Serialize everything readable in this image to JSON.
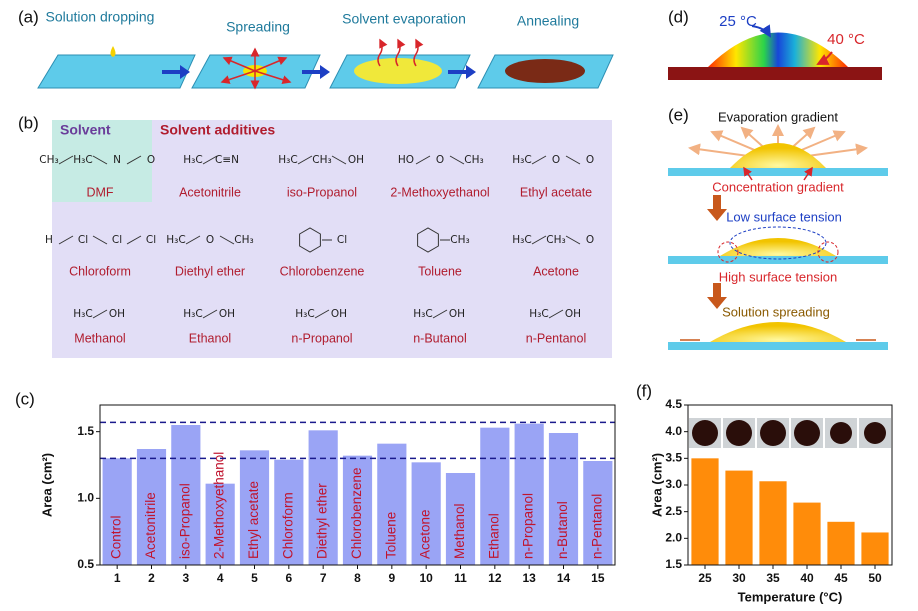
{
  "panels": {
    "a": {
      "label": "(a)",
      "steps": [
        "Solution dropping",
        "Spreading",
        "Solvent evaporation",
        "Annealing"
      ]
    },
    "b": {
      "label": "(b)",
      "solvent_heading": "Solvent",
      "additives_heading": "Solvent additives",
      "molecules": [
        {
          "name": "DMF",
          "fragments": [
            "CH₃",
            "H₃C",
            "N",
            "O"
          ]
        },
        {
          "name": "Acetonitrile",
          "fragments": [
            "H₃C",
            "C≡N"
          ]
        },
        {
          "name": "iso-Propanol",
          "fragments": [
            "H₃C",
            "CH₃",
            "OH"
          ]
        },
        {
          "name": "2-Methoxyethanol",
          "fragments": [
            "HO",
            "O",
            "CH₃"
          ]
        },
        {
          "name": "Ethyl acetate",
          "fragments": [
            "H₃C",
            "O",
            "O"
          ]
        },
        {
          "name": "Chloroform",
          "fragments": [
            "H",
            "Cl",
            "Cl",
            "Cl"
          ]
        },
        {
          "name": "Diethyl ether",
          "fragments": [
            "H₃C",
            "O",
            "CH₃"
          ]
        },
        {
          "name": "Chlorobenzene",
          "fragments": [
            "Cl"
          ],
          "ring": true
        },
        {
          "name": "Toluene",
          "fragments": [
            "CH₃"
          ],
          "ring": true
        },
        {
          "name": "Acetone",
          "fragments": [
            "H₃C",
            "CH₃",
            "O"
          ]
        },
        {
          "name": "Methanol",
          "fragments": [
            "H₃C",
            "OH"
          ]
        },
        {
          "name": "Ethanol",
          "fragments": [
            "H₃C",
            "OH"
          ]
        },
        {
          "name": "n-Propanol",
          "fragments": [
            "H₃C",
            "OH"
          ]
        },
        {
          "name": "n-Butanol",
          "fragments": [
            "H₃C",
            "OH"
          ]
        },
        {
          "name": "n-Pentanol",
          "fragments": [
            "H₃C",
            "OH"
          ]
        }
      ]
    },
    "d": {
      "label": "(d)",
      "temp_low": "25 °C",
      "temp_high": "40 °C"
    },
    "e": {
      "label": "(e)",
      "evaporation": "Evaporation gradient",
      "concentration": "Concentration gradient",
      "low_tension": "Low surface tension",
      "high_tension": "High surface tension",
      "spreading": "Solution spreading"
    }
  },
  "chart_data": [
    {
      "type": "bar",
      "label": "(c)",
      "ylabel": "Area (cm²)",
      "color": "#9aa4f5",
      "categories": [
        "1",
        "2",
        "3",
        "4",
        "5",
        "6",
        "7",
        "8",
        "9",
        "10",
        "11",
        "12",
        "13",
        "14",
        "15"
      ],
      "values": [
        1.3,
        1.37,
        1.55,
        1.11,
        1.36,
        1.29,
        1.51,
        1.32,
        1.41,
        1.27,
        1.19,
        1.53,
        1.56,
        1.49,
        1.28
      ],
      "bar_labels": [
        "Control",
        "Acetonitrile",
        "iso-Propanol",
        "2-Methoxyethanol",
        "Ethyl acetate",
        "Chloroform",
        "Diethyl ether",
        "Chlorobenzene",
        "Toluene",
        "Acetone",
        "Methanol",
        "Ethanol",
        "n-Propanol",
        "n-Butanol",
        "n-Pentanol"
      ],
      "reference_lines": [
        1.57,
        1.3
      ],
      "ylim": [
        0.5,
        1.7
      ],
      "yticks": [
        0.5,
        {
          "value": 1,
          "label": "1.0"
        },
        1.5
      ]
    },
    {
      "type": "bar",
      "label": "(f)",
      "ylabel": "Area (cm²)",
      "xlabel": "Temperature (°C)",
      "color": "#ff8c0a",
      "categories": [
        "25",
        "30",
        "35",
        "40",
        "45",
        "50"
      ],
      "values": [
        3.5,
        3.27,
        3.07,
        2.67,
        2.31,
        2.11
      ],
      "ylim": [
        1.5,
        4.5
      ],
      "yticks": [
        1.5,
        {
          "value": 2,
          "label": "2.0"
        },
        2.5,
        {
          "value": 3,
          "label": "3.0"
        },
        3.5,
        {
          "value": 4,
          "label": "4.0"
        },
        4.5
      ]
    }
  ]
}
